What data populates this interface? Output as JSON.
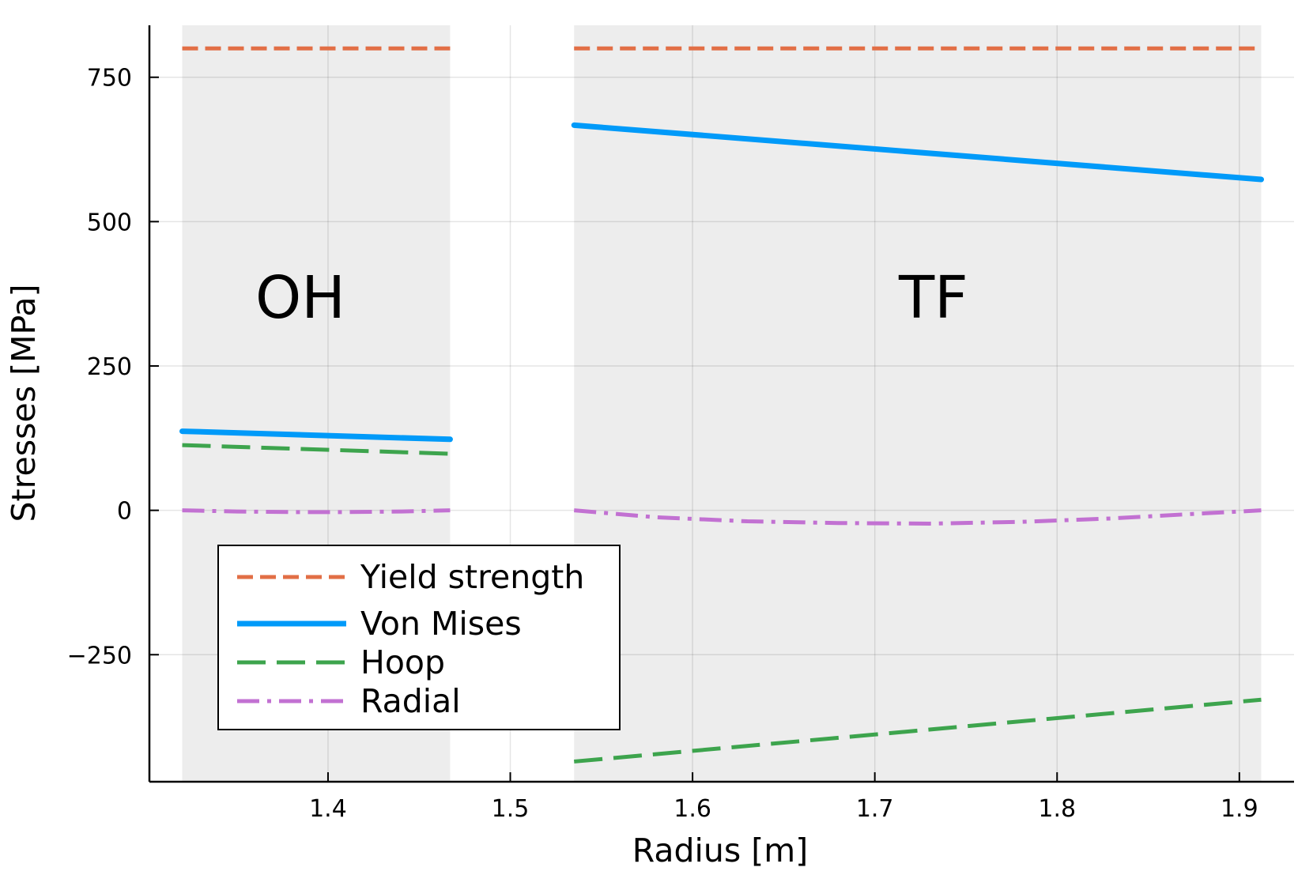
{
  "chart_data": {
    "type": "line",
    "title": "",
    "xlabel": "Radius [m]",
    "ylabel": "Stresses [MPa]",
    "xlim": [
      1.302,
      1.93
    ],
    "ylim": [
      -470,
      840
    ],
    "xticks": [
      1.4,
      1.5,
      1.6,
      1.7,
      1.8,
      1.9
    ],
    "yticks": [
      -250,
      0,
      250,
      500,
      750
    ],
    "xtick_labels": [
      "1.4",
      "1.5",
      "1.6",
      "1.7",
      "1.8",
      "1.9"
    ],
    "ytick_labels": [
      "−250",
      "0",
      "250",
      "500",
      "750"
    ],
    "grid": true,
    "legend_position": "bottom-left",
    "regions": [
      {
        "name": "OH",
        "x": [
          1.32,
          1.467
        ]
      },
      {
        "name": "TF",
        "x": [
          1.535,
          1.912
        ]
      }
    ],
    "series": [
      {
        "name": "Yield strength",
        "color": "#e26f46",
        "style": "dash",
        "segments": [
          {
            "x": [
              1.32,
              1.467
            ],
            "y": [
              800,
              800
            ]
          },
          {
            "x": [
              1.535,
              1.912
            ],
            "y": [
              800,
              800
            ]
          }
        ]
      },
      {
        "name": "Von Mises",
        "color": "#009af9",
        "style": "solid",
        "segments": [
          {
            "x": [
              1.32,
              1.467
            ],
            "y": [
              137,
              123
            ]
          },
          {
            "x": [
              1.535,
              1.912
            ],
            "y": [
              667,
              573
            ]
          }
        ]
      },
      {
        "name": "Hoop",
        "color": "#3da44d",
        "style": "longdash",
        "segments": [
          {
            "x": [
              1.32,
              1.467
            ],
            "y": [
              113,
              98
            ]
          },
          {
            "x": [
              1.535,
              1.912
            ],
            "y": [
              -435,
              -328
            ]
          }
        ]
      },
      {
        "name": "Radial",
        "color": "#c271d2",
        "style": "dashdot",
        "segments": [
          {
            "x": [
              1.32,
              1.35,
              1.38,
              1.41,
              1.44,
              1.467
            ],
            "y": [
              0,
              -2,
              -3,
              -3,
              -2,
              0
            ]
          },
          {
            "x": [
              1.535,
              1.58,
              1.63,
              1.68,
              1.73,
              1.78,
              1.83,
              1.87,
              1.912
            ],
            "y": [
              0,
              -12,
              -19,
              -22,
              -23,
              -20,
              -14,
              -7,
              0
            ]
          }
        ]
      }
    ]
  }
}
